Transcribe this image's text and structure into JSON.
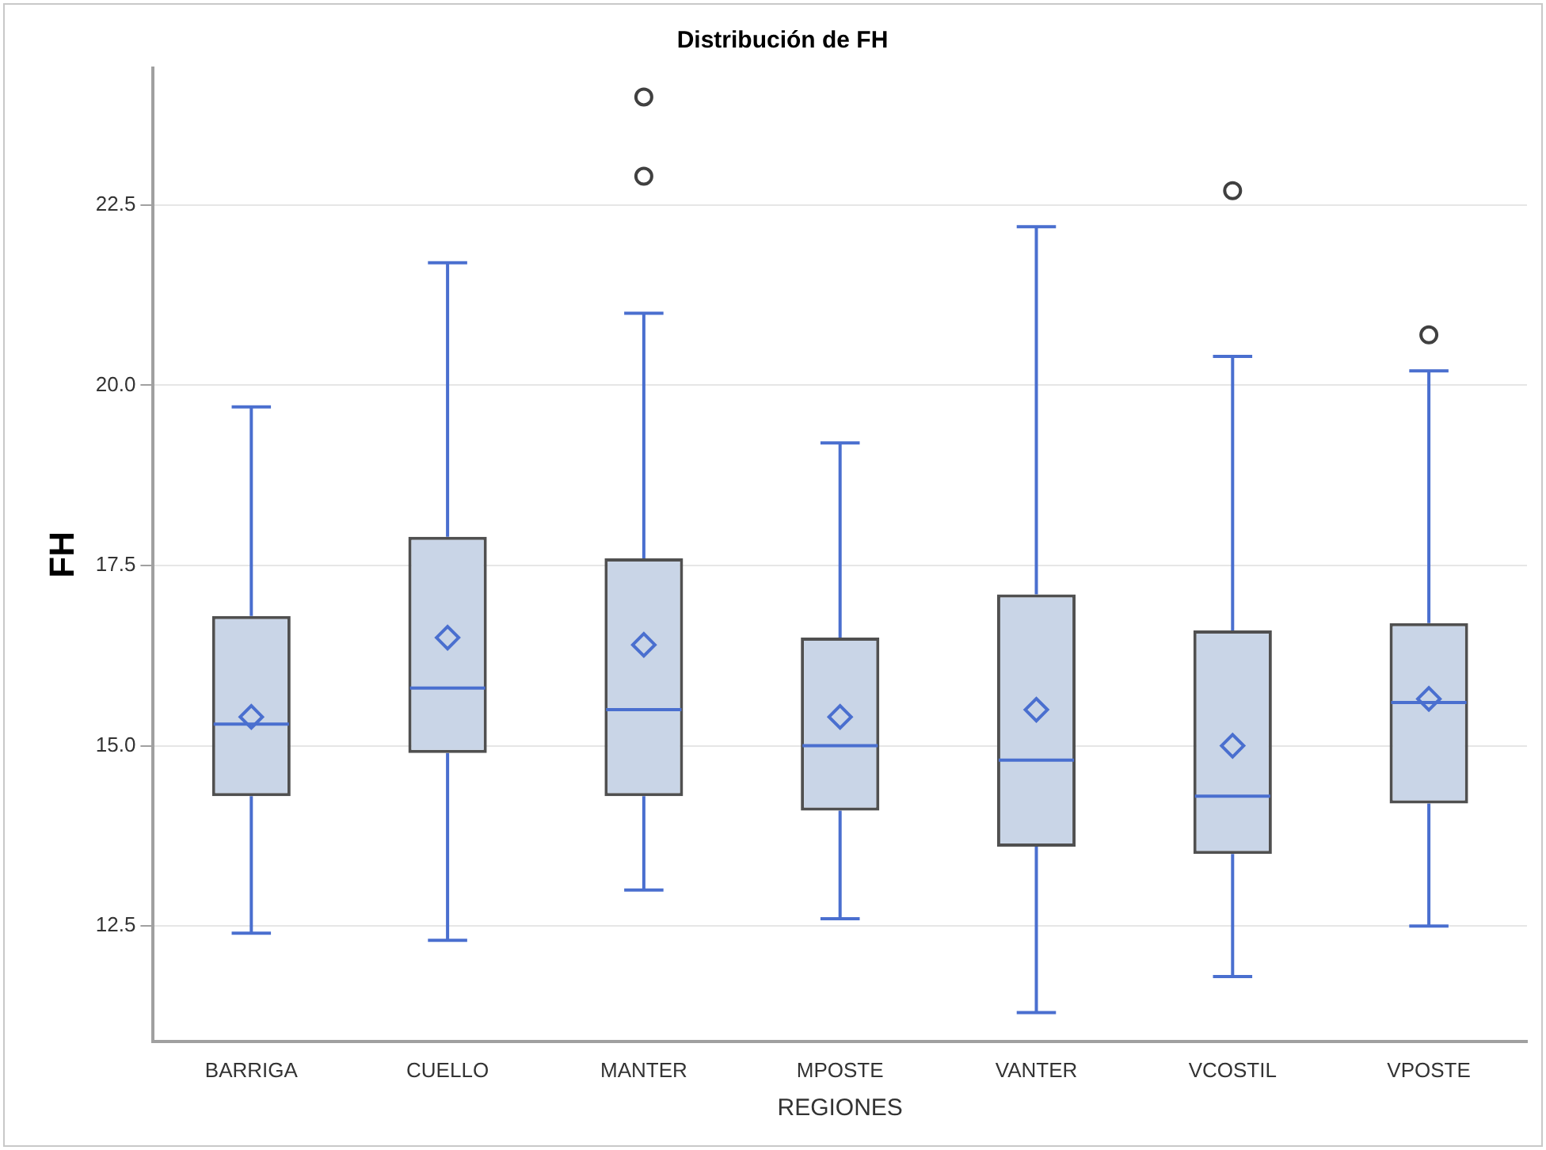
{
  "chart_data": {
    "type": "box",
    "title": "Distribución de FH",
    "xlabel": "REGIONES",
    "ylabel": "FH",
    "categories": [
      "BARRIGA",
      "CUELLO",
      "MANTER",
      "MPOSTE",
      "VANTER",
      "VCOSTIL",
      "VPOSTE"
    ],
    "boxes": [
      {
        "low": 12.4,
        "q1": 14.3,
        "median": 15.3,
        "q3": 16.8,
        "high": 19.7,
        "mean": 15.4
      },
      {
        "low": 12.3,
        "q1": 14.9,
        "median": 15.8,
        "q3": 17.9,
        "high": 21.7,
        "mean": 16.5
      },
      {
        "low": 13.0,
        "q1": 14.3,
        "median": 15.5,
        "q3": 17.6,
        "high": 21.0,
        "mean": 16.4,
        "outliers": [
          22.9,
          24.0
        ]
      },
      {
        "low": 12.6,
        "q1": 14.1,
        "median": 15.0,
        "q3": 16.5,
        "high": 19.2,
        "mean": 15.4
      },
      {
        "low": 11.3,
        "q1": 13.6,
        "median": 14.8,
        "q3": 17.1,
        "high": 22.2,
        "mean": 15.5
      },
      {
        "low": 11.8,
        "q1": 13.5,
        "median": 14.3,
        "q3": 16.6,
        "high": 20.4,
        "mean": 15.0,
        "outliers": [
          22.7
        ]
      },
      {
        "low": 12.5,
        "q1": 14.2,
        "median": 15.6,
        "q3": 16.7,
        "high": 20.2,
        "mean": 15.65,
        "outliers": [
          20.7
        ]
      }
    ],
    "ylim": [
      10.9,
      24.4
    ],
    "yticks": [
      {
        "value": 12.5,
        "label": "12.5"
      },
      {
        "value": 15,
        "label": "15.0"
      },
      {
        "value": 17.5,
        "label": "17.5"
      },
      {
        "value": 20,
        "label": "20.0"
      },
      {
        "value": 22.5,
        "label": "22.5"
      }
    ],
    "grid": "y",
    "legend": false
  }
}
